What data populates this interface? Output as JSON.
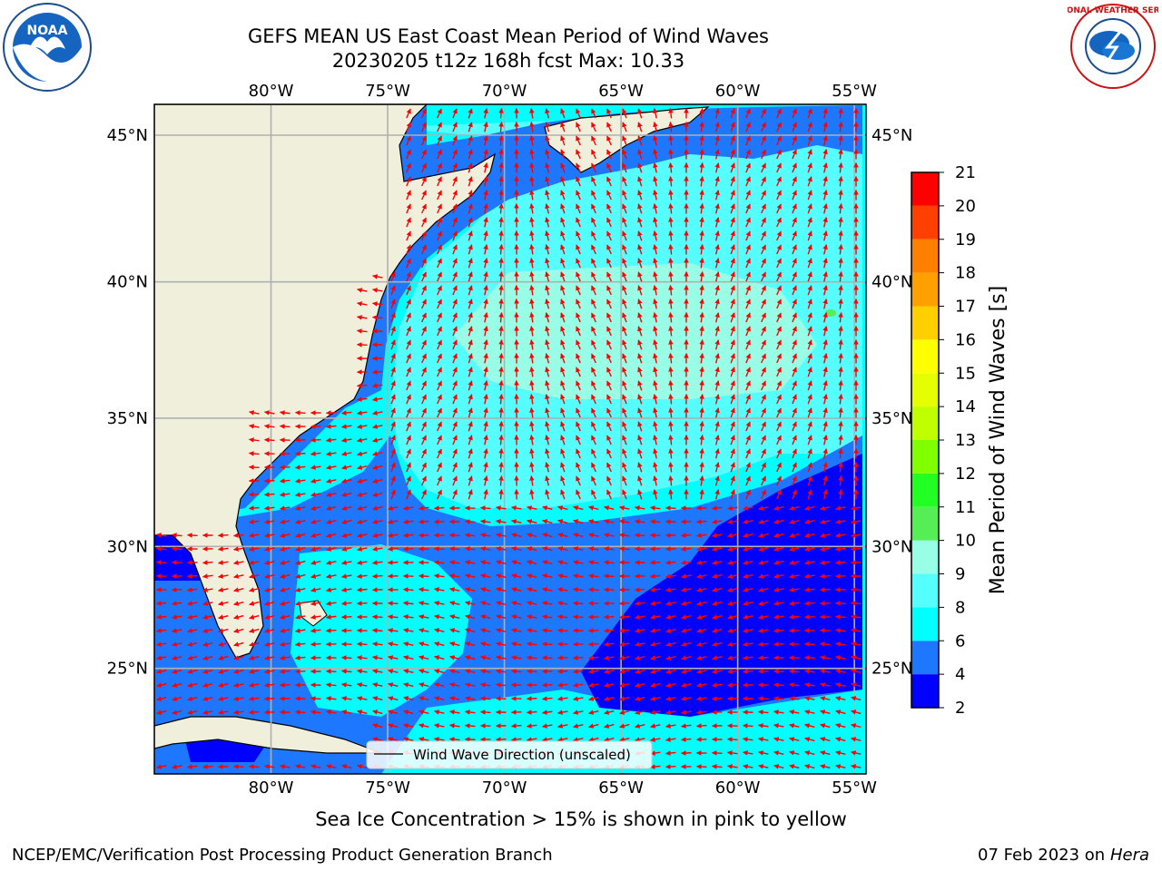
{
  "header": {
    "title_line1": "GEFS MEAN US East Coast Mean Period of Wind Waves",
    "title_line2": "20230205 t12z 168h fcst   Max: 10.33"
  },
  "logos": {
    "left": {
      "text": "NOAA",
      "icon": "noaa-logo-icon"
    },
    "right": {
      "text": "NATIONAL WEATHER SERVICE",
      "icon": "nws-logo-icon"
    }
  },
  "map": {
    "lon_labels": [
      "80°W",
      "75°W",
      "70°W",
      "65°W",
      "60°W",
      "55°W"
    ],
    "lat_labels": [
      "45°N",
      "40°N",
      "35°N",
      "30°N",
      "25°N"
    ],
    "lon_values": [
      -80,
      -75,
      -70,
      -65,
      -60,
      -55
    ],
    "lat_values": [
      45,
      40,
      35,
      30,
      25
    ],
    "extent": {
      "lon": [
        -85,
        -54.5
      ],
      "lat": [
        20.5,
        46
      ]
    },
    "legend_label": "Wind Wave Direction (unscaled)",
    "arrow_color": "#ff0000",
    "land_color": "#efefdc"
  },
  "colorbar": {
    "label": "Mean Period of Wind Waves [s]",
    "ticks": [
      "2",
      "4",
      "6",
      "8",
      "9",
      "10",
      "11",
      "12",
      "13",
      "14",
      "15",
      "16",
      "17",
      "18",
      "19",
      "20",
      "21"
    ],
    "colors": [
      "#0000ff",
      "#1e78ff",
      "#00ffff",
      "#55ffff",
      "#98ffe6",
      "#55ee55",
      "#22ff22",
      "#7fff00",
      "#bfff00",
      "#e6ff00",
      "#ffff00",
      "#ffcf00",
      "#ffa000",
      "#ff7f00",
      "#ff4000",
      "#ff0000"
    ]
  },
  "notes": {
    "ice": "Sea Ice Concentration > 15% is shown in pink to yellow"
  },
  "footer": {
    "left": "NCEP/EMC/Verification Post Processing Product Generation Branch",
    "date": "07 Feb 2023",
    "on": "on",
    "machine": "Hera"
  }
}
